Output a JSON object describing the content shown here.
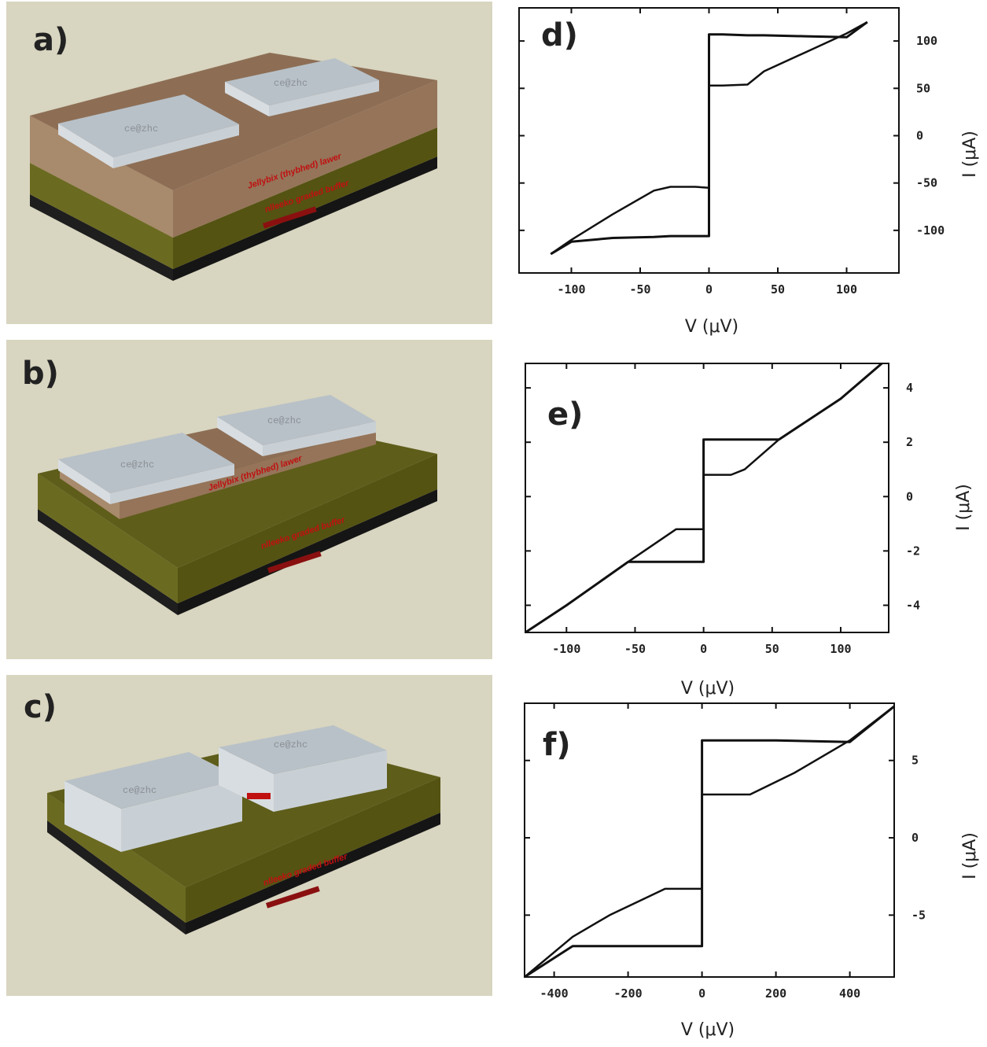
{
  "illustrations": [
    {
      "letter": "a)",
      "layer_labels": [
        "Jellybix (thybhed) lawer",
        "nlleeko graded buffer"
      ],
      "contact_text": "ce@zhc"
    },
    {
      "letter": "b)",
      "layer_labels": [
        "Jellybix (thybhed) lawer",
        "nlleeko graded buffer"
      ],
      "contact_text": "ce@zhc"
    },
    {
      "letter": "c)",
      "layer_labels": [
        "nlleeko graded buffer"
      ],
      "contact_text": "ce@zhc"
    }
  ],
  "chart_data": [
    {
      "type": "line",
      "panel": "d)",
      "xlabel": "V (μV)",
      "ylabel": "I (μA)",
      "xlim": [
        -138,
        138
      ],
      "ylim": [
        -145,
        135
      ],
      "xticks": [
        -100,
        -50,
        0,
        50,
        100
      ],
      "yticks": [
        100,
        50,
        0,
        -50,
        -100
      ],
      "xtick_labels": [
        "-100",
        "-50",
        "0",
        "50",
        "100"
      ],
      "ytick_labels": [
        "100",
        "50",
        "0",
        "-50",
        "-100"
      ],
      "series": [
        {
          "x": [
            -115,
            -100,
            -70,
            -40,
            -28,
            -10,
            0,
            0,
            0,
            0,
            0,
            10,
            28,
            40,
            70,
            100,
            115
          ],
          "y": [
            -125,
            -112,
            -108,
            -107,
            -106,
            -106,
            -106,
            -55,
            0,
            55,
            107,
            107,
            106,
            106,
            105,
            104,
            120
          ]
        },
        {
          "x": [
            115,
            100,
            70,
            40,
            28,
            10,
            0,
            0,
            -10,
            -28,
            -40,
            -70,
            -100,
            -115
          ],
          "y": [
            120,
            108,
            88,
            68,
            54,
            53,
            53,
            -55,
            -54,
            -54,
            -58,
            -83,
            -110,
            -125
          ]
        }
      ]
    },
    {
      "type": "line",
      "panel": "e)",
      "xlabel": "V (μV)",
      "ylabel": "I (μA)",
      "xlim": [
        -130,
        135
      ],
      "ylim": [
        -5,
        4.9
      ],
      "xticks": [
        -100,
        -50,
        0,
        50,
        100
      ],
      "yticks": [
        4,
        2,
        0,
        -2,
        -4
      ],
      "xtick_labels": [
        "-100",
        "-50",
        "0",
        "50",
        "100"
      ],
      "ytick_labels": [
        "4",
        "2",
        "0",
        "-2",
        "-4"
      ],
      "series": [
        {
          "x": [
            -130,
            -100,
            -55,
            -20,
            0,
            0,
            0,
            55,
            100,
            130
          ],
          "y": [
            -5,
            -4,
            -2.4,
            -2.4,
            -2.4,
            0,
            2.1,
            2.1,
            3.6,
            4.9
          ]
        },
        {
          "x": [
            130,
            100,
            55,
            30,
            20,
            0,
            0,
            -10,
            -20,
            -55,
            -100,
            -130
          ],
          "y": [
            4.9,
            3.6,
            2.1,
            1.0,
            0.8,
            0.8,
            -1.2,
            -1.2,
            -1.2,
            -2.4,
            -4,
            -5
          ]
        }
      ]
    },
    {
      "type": "line",
      "panel": "f)",
      "xlabel": "V (μV)",
      "ylabel": "I (μA)",
      "xlim": [
        -480,
        520
      ],
      "ylim": [
        -9,
        8.7
      ],
      "xticks": [
        -400,
        -200,
        0,
        200,
        400
      ],
      "yticks": [
        5,
        0,
        -5
      ],
      "xtick_labels": [
        "-400",
        "-200",
        "0",
        "200",
        "400"
      ],
      "ytick_labels": [
        "5",
        "0",
        "-5"
      ],
      "series": [
        {
          "x": [
            -480,
            -350,
            -200,
            0,
            0,
            0,
            200,
            400,
            520
          ],
          "y": [
            -9,
            -7,
            -7,
            -7,
            0,
            6.3,
            6.3,
            6.2,
            8.5
          ]
        },
        {
          "x": [
            520,
            400,
            250,
            130,
            0,
            0,
            -100,
            -250,
            -350,
            -480
          ],
          "y": [
            8.5,
            6.3,
            4.2,
            2.8,
            2.8,
            -3.3,
            -3.3,
            -5.0,
            -6.4,
            -9
          ]
        }
      ]
    }
  ]
}
